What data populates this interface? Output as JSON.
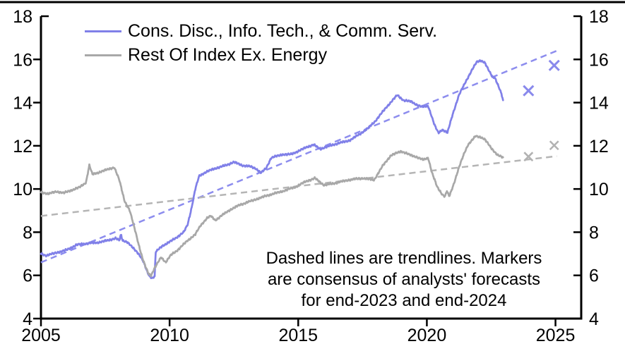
{
  "page": {
    "background": "#ffffff",
    "top_rule_color": "#000000",
    "axis_color": "#000000",
    "text_color": "#000000"
  },
  "chart_data": {
    "type": "line",
    "title": "",
    "xlabel": "",
    "ylabel": "",
    "grid": false,
    "x_axis": {
      "range": [
        2005,
        2026.0
      ],
      "ticks": [
        2005,
        2010,
        2015,
        2020,
        2025
      ],
      "tick_labels": [
        "2005",
        "2010",
        "2015",
        "2020",
        "2025"
      ]
    },
    "y_axis": {
      "range": [
        4,
        18
      ],
      "ticks": [
        4,
        6,
        8,
        10,
        12,
        14,
        16,
        18
      ],
      "tick_labels": [
        "4",
        "6",
        "8",
        "10",
        "12",
        "14",
        "16",
        "18"
      ],
      "sides": [
        "left",
        "right"
      ]
    },
    "legend": [
      {
        "label": "Cons. Disc., Info. Tech., & Comm. Serv.",
        "color": "#8080e8"
      },
      {
        "label": "Rest Of Index Ex. Energy",
        "color": "#a8a8a8"
      }
    ],
    "annotation": {
      "lines": [
        "Dashed lines are trendlines. Markers",
        "are consensus of analysts' forecasts",
        "for end-2023 and end-2024"
      ]
    },
    "series": [
      {
        "name": "Cons. Disc., Info. Tech., & Comm. Serv.",
        "color": "#8080e8",
        "points": [
          [
            2005.0,
            7.0
          ],
          [
            2005.2,
            6.92
          ],
          [
            2005.45,
            7.0
          ],
          [
            2005.7,
            7.08
          ],
          [
            2006.0,
            7.18
          ],
          [
            2006.4,
            7.42
          ],
          [
            2006.8,
            7.48
          ],
          [
            2007.2,
            7.52
          ],
          [
            2007.6,
            7.62
          ],
          [
            2007.9,
            7.72
          ],
          [
            2008.05,
            7.62
          ],
          [
            2008.11,
            7.9
          ],
          [
            2008.17,
            7.62
          ],
          [
            2008.35,
            7.55
          ],
          [
            2008.55,
            7.3
          ],
          [
            2008.75,
            7.07
          ],
          [
            2008.9,
            6.82
          ],
          [
            2009.0,
            6.58
          ],
          [
            2009.1,
            6.25
          ],
          [
            2009.2,
            6.0
          ],
          [
            2009.32,
            5.88
          ],
          [
            2009.42,
            5.95
          ],
          [
            2009.46,
            7.08
          ],
          [
            2009.7,
            7.35
          ],
          [
            2010.0,
            7.55
          ],
          [
            2010.3,
            7.78
          ],
          [
            2010.55,
            8.0
          ],
          [
            2010.7,
            8.35
          ],
          [
            2010.85,
            9.1
          ],
          [
            2011.0,
            10.0
          ],
          [
            2011.15,
            10.6
          ],
          [
            2011.4,
            10.78
          ],
          [
            2011.65,
            10.9
          ],
          [
            2011.9,
            11.0
          ],
          [
            2012.2,
            11.1
          ],
          [
            2012.5,
            11.25
          ],
          [
            2012.8,
            11.1
          ],
          [
            2013.1,
            11.05
          ],
          [
            2013.35,
            10.95
          ],
          [
            2013.55,
            10.75
          ],
          [
            2013.75,
            10.95
          ],
          [
            2013.95,
            11.45
          ],
          [
            2014.4,
            11.6
          ],
          [
            2014.7,
            11.6
          ],
          [
            2015.0,
            11.75
          ],
          [
            2015.35,
            11.95
          ],
          [
            2015.6,
            12.05
          ],
          [
            2015.85,
            11.85
          ],
          [
            2016.1,
            11.95
          ],
          [
            2016.5,
            12.1
          ],
          [
            2017.0,
            12.25
          ],
          [
            2017.4,
            12.55
          ],
          [
            2017.7,
            12.8
          ],
          [
            2018.0,
            13.15
          ],
          [
            2018.4,
            13.75
          ],
          [
            2018.85,
            14.35
          ],
          [
            2019.1,
            14.1
          ],
          [
            2019.4,
            14.05
          ],
          [
            2019.6,
            13.9
          ],
          [
            2019.8,
            13.8
          ],
          [
            2020.05,
            13.85
          ],
          [
            2020.3,
            12.95
          ],
          [
            2020.45,
            12.6
          ],
          [
            2020.6,
            12.75
          ],
          [
            2020.8,
            12.6
          ],
          [
            2021.0,
            13.45
          ],
          [
            2021.25,
            14.35
          ],
          [
            2021.5,
            14.95
          ],
          [
            2021.75,
            15.5
          ],
          [
            2021.95,
            15.9
          ],
          [
            2022.1,
            15.95
          ],
          [
            2022.25,
            15.85
          ],
          [
            2022.4,
            15.5
          ],
          [
            2022.55,
            15.2
          ],
          [
            2022.65,
            15.15
          ],
          [
            2022.8,
            14.7
          ],
          [
            2022.9,
            14.4
          ],
          [
            2022.97,
            14.05
          ]
        ]
      },
      {
        "name": "Rest Of Index Ex. Energy",
        "color": "#a8a8a8",
        "points": [
          [
            2005.0,
            9.85
          ],
          [
            2005.3,
            9.78
          ],
          [
            2005.6,
            9.88
          ],
          [
            2005.9,
            9.82
          ],
          [
            2006.2,
            9.95
          ],
          [
            2006.5,
            10.08
          ],
          [
            2006.75,
            10.3
          ],
          [
            2006.88,
            11.1
          ],
          [
            2007.0,
            10.68
          ],
          [
            2007.2,
            10.75
          ],
          [
            2007.45,
            10.85
          ],
          [
            2007.7,
            10.95
          ],
          [
            2007.85,
            11.0
          ],
          [
            2008.05,
            10.4
          ],
          [
            2008.25,
            9.45
          ],
          [
            2008.45,
            9.0
          ],
          [
            2008.68,
            8.0
          ],
          [
            2008.82,
            7.33
          ],
          [
            2008.95,
            6.77
          ],
          [
            2009.08,
            6.35
          ],
          [
            2009.2,
            6.05
          ],
          [
            2009.28,
            6.0
          ],
          [
            2009.4,
            6.3
          ],
          [
            2009.55,
            6.6
          ],
          [
            2009.67,
            6.84
          ],
          [
            2009.85,
            6.61
          ],
          [
            2010.05,
            6.94
          ],
          [
            2010.3,
            7.16
          ],
          [
            2010.68,
            7.59
          ],
          [
            2011.0,
            7.9
          ],
          [
            2011.2,
            8.3
          ],
          [
            2011.45,
            8.65
          ],
          [
            2011.6,
            8.75
          ],
          [
            2011.78,
            8.55
          ],
          [
            2012.0,
            8.75
          ],
          [
            2012.3,
            9.0
          ],
          [
            2012.7,
            9.25
          ],
          [
            2013.3,
            9.5
          ],
          [
            2013.8,
            9.7
          ],
          [
            2014.4,
            9.9
          ],
          [
            2014.9,
            10.1
          ],
          [
            2015.3,
            10.35
          ],
          [
            2015.65,
            10.5
          ],
          [
            2016.0,
            10.18
          ],
          [
            2016.35,
            10.25
          ],
          [
            2016.7,
            10.35
          ],
          [
            2017.1,
            10.45
          ],
          [
            2017.5,
            10.5
          ],
          [
            2017.95,
            10.42
          ],
          [
            2018.3,
            11.1
          ],
          [
            2018.6,
            11.55
          ],
          [
            2019.0,
            11.75
          ],
          [
            2019.3,
            11.6
          ],
          [
            2019.6,
            11.48
          ],
          [
            2019.85,
            11.35
          ],
          [
            2020.05,
            11.45
          ],
          [
            2020.2,
            10.75
          ],
          [
            2020.4,
            10.1
          ],
          [
            2020.6,
            9.75
          ],
          [
            2020.7,
            9.65
          ],
          [
            2020.78,
            9.9
          ],
          [
            2020.87,
            9.65
          ],
          [
            2021.05,
            10.25
          ],
          [
            2021.25,
            11.0
          ],
          [
            2021.45,
            11.65
          ],
          [
            2021.6,
            12.05
          ],
          [
            2021.9,
            12.45
          ],
          [
            2022.1,
            12.4
          ],
          [
            2022.25,
            12.3
          ],
          [
            2022.5,
            11.9
          ],
          [
            2022.75,
            11.57
          ],
          [
            2022.97,
            11.45
          ]
        ]
      }
    ],
    "trendlines": [
      {
        "for": "Cons. Disc., Info. Tech., & Comm. Serv.",
        "color": "#8d8dee",
        "start": [
          2005.0,
          6.6
        ],
        "end": [
          2025.05,
          16.4
        ]
      },
      {
        "for": "Rest Of Index Ex. Energy",
        "color": "#b5b5b5",
        "start": [
          2005.0,
          8.75
        ],
        "end": [
          2025.05,
          11.52
        ]
      }
    ],
    "markers": [
      {
        "for": "Cons. Disc., Info. Tech., & Comm. Serv.",
        "shape": "x",
        "color": "#8989ec",
        "size": 7,
        "stroke": 3,
        "points": [
          [
            2023.95,
            14.55
          ],
          [
            2024.95,
            15.72
          ]
        ]
      },
      {
        "for": "Rest Of Index Ex. Energy",
        "shape": "x",
        "color": "#b2b2b2",
        "size": 6,
        "stroke": 2.6,
        "points": [
          [
            2023.95,
            11.5
          ],
          [
            2024.95,
            12.02
          ]
        ]
      }
    ]
  }
}
